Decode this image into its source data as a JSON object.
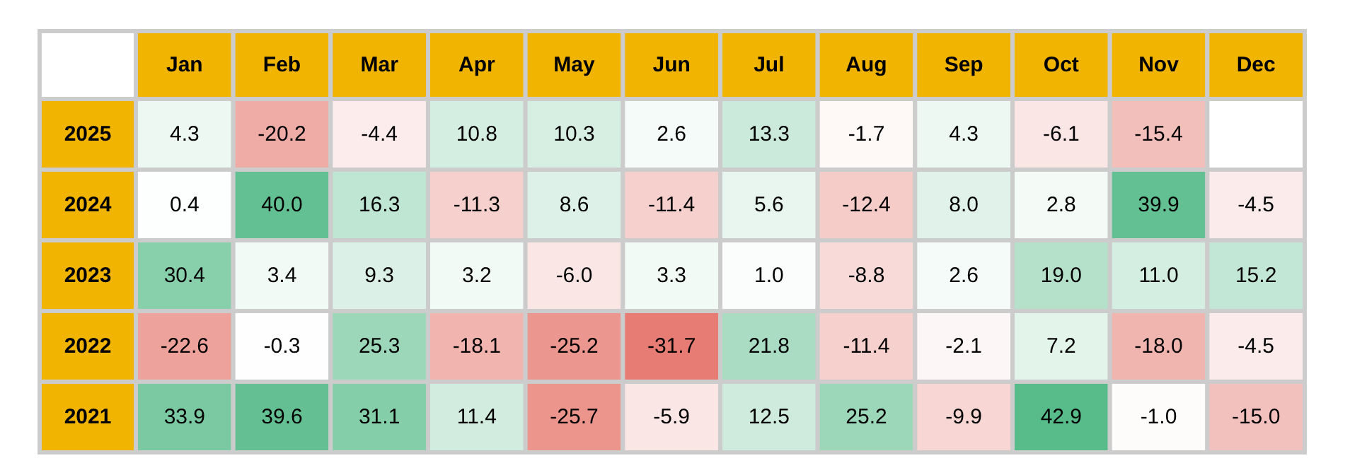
{
  "chart_data": {
    "type": "heatmap",
    "categories": [
      "Jan",
      "Feb",
      "Mar",
      "Apr",
      "May",
      "Jun",
      "Jul",
      "Aug",
      "Sep",
      "Oct",
      "Nov",
      "Dec"
    ],
    "y_categories": [
      "2025",
      "2024",
      "2023",
      "2022",
      "2021"
    ],
    "cells": [
      [
        4.3,
        -20.2,
        -4.4,
        10.8,
        10.3,
        2.6,
        13.3,
        -1.7,
        4.3,
        -6.1,
        -15.4,
        null
      ],
      [
        0.4,
        40.0,
        16.3,
        -11.3,
        8.6,
        -11.4,
        5.6,
        -12.4,
        8.0,
        2.8,
        39.9,
        -4.5
      ],
      [
        30.4,
        3.4,
        9.3,
        3.2,
        -6.0,
        3.3,
        1.0,
        -8.8,
        2.6,
        19.0,
        11.0,
        15.2
      ],
      [
        -22.6,
        -0.3,
        25.3,
        -18.1,
        -25.2,
        -31.7,
        21.8,
        -11.4,
        -2.1,
        7.2,
        -18.0,
        -4.5
      ],
      [
        33.9,
        39.6,
        31.1,
        11.4,
        -25.7,
        -5.9,
        12.5,
        25.2,
        -9.9,
        42.9,
        -1.0,
        -15.0
      ]
    ],
    "cell_labels": [
      [
        "4.3",
        "-20.2",
        "-4.4",
        "10.8",
        "10.3",
        "2.6",
        "13.3",
        "-1.7",
        "4.3",
        "-6.1",
        "-15.4",
        null
      ],
      [
        "0.4",
        "40.0",
        "16.3",
        "-11.3",
        "8.6",
        "-11.4",
        "5.6",
        "-12.4",
        "8.0",
        "2.8",
        "39.9",
        "-4.5"
      ],
      [
        "30.4",
        "3.4",
        "9.3",
        "3.2",
        "-6.0",
        "3.3",
        "1.0",
        "-8.8",
        "2.6",
        "19.0",
        "11.0",
        "15.2"
      ],
      [
        "-22.6",
        "-0.3",
        "25.3",
        "-18.1",
        "-25.2",
        "-31.7",
        "21.8",
        "-11.4",
        "-2.1",
        "7.2",
        "-18.0",
        "-4.5"
      ],
      [
        "33.9",
        "39.6",
        "31.1",
        "11.4",
        "-25.7",
        "-5.9",
        "12.5",
        "25.2",
        "-9.9",
        "42.9",
        "-1.0",
        "-15.0"
      ]
    ]
  }
}
